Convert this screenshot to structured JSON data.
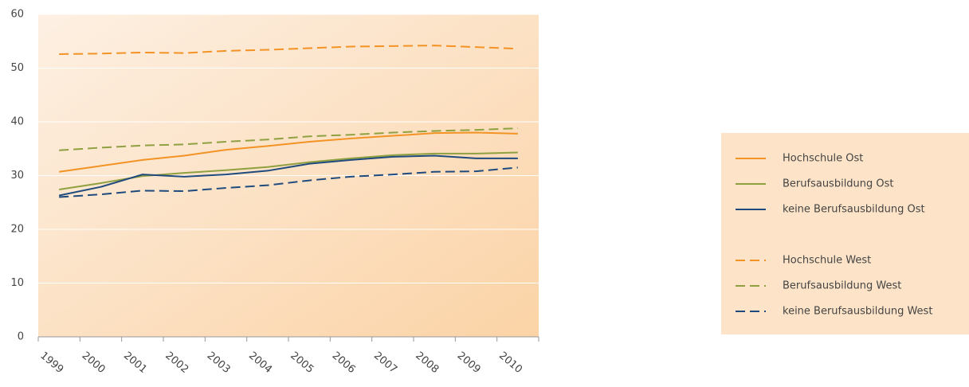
{
  "chart_data": {
    "type": "line",
    "categories": [
      "1999",
      "2000",
      "2001",
      "2002",
      "2003",
      "2004",
      "2005",
      "2006",
      "2007",
      "2008",
      "2009",
      "2010"
    ],
    "series": [
      {
        "name": "Hochschule Ost",
        "color": "#f39325",
        "line_style": "solid",
        "values": [
          30.7,
          31.8,
          32.9,
          33.7,
          34.8,
          35.5,
          36.3,
          36.9,
          37.4,
          37.9,
          38.0,
          37.8
        ]
      },
      {
        "name": "Berufsausbildung Ost",
        "color": "#8fa040",
        "line_style": "solid",
        "values": [
          27.4,
          28.6,
          29.9,
          30.5,
          31.0,
          31.6,
          32.5,
          33.2,
          33.8,
          34.1,
          34.1,
          34.3
        ]
      },
      {
        "name": "keine Berufsausbildung Ost",
        "color": "#1f4a7d",
        "line_style": "solid",
        "values": [
          26.3,
          27.9,
          30.2,
          29.8,
          30.2,
          30.9,
          32.2,
          32.9,
          33.5,
          33.7,
          33.2,
          33.2
        ]
      },
      {
        "name": "Hochschule West",
        "color": "#f39325",
        "line_style": "dashed",
        "values": [
          52.6,
          52.7,
          52.9,
          52.8,
          53.2,
          53.4,
          53.7,
          54.0,
          54.1,
          54.2,
          53.9,
          53.6
        ]
      },
      {
        "name": "Berufsausbildung West",
        "color": "#8fa040",
        "line_style": "dashed",
        "values": [
          34.7,
          35.2,
          35.6,
          35.8,
          36.3,
          36.7,
          37.3,
          37.6,
          38.0,
          38.3,
          38.5,
          38.8
        ]
      },
      {
        "name": "keine Berufsausbildung West",
        "color": "#1f4a7d",
        "line_style": "dashed",
        "values": [
          26.0,
          26.5,
          27.2,
          27.1,
          27.7,
          28.2,
          29.1,
          29.8,
          30.2,
          30.7,
          30.8,
          31.5
        ]
      }
    ],
    "ylim": [
      0,
      60
    ],
    "yticks": [
      0,
      10,
      20,
      30,
      40,
      50,
      60
    ],
    "grid": true
  }
}
